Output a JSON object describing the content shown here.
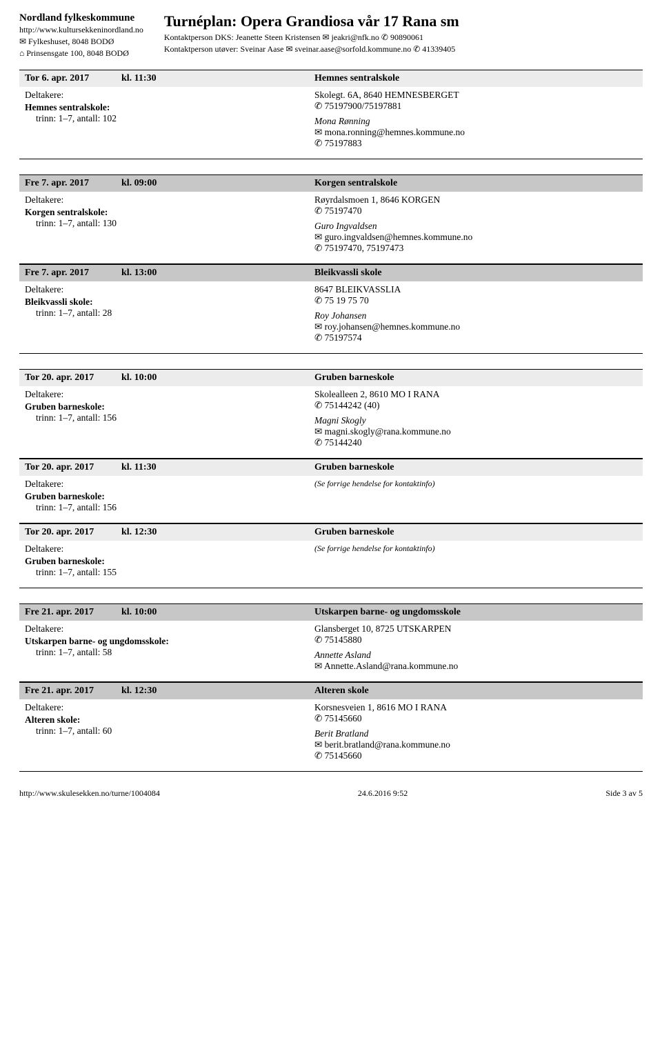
{
  "header": {
    "org_name": "Nordland fylkeskommune",
    "org_url": "http://www.kultursekkeninordland.no",
    "org_postal": "✉ Fylkeshuset, 8048 BODØ",
    "org_street": "⌂ Prinsensgate 100, 8048 BODØ",
    "tour_title": "Turnéplan: Opera Grandiosa vår 17 Rana sm",
    "contact_dks": "Kontaktperson DKS: Jeanette Steen Kristensen ✉ jeakri@nfk.no ✆ 90890061",
    "contact_performer": "Kontaktperson utøver: Sveinar Aase ✉ sveinar.aase@sorfold.kommune.no ✆ 41339405"
  },
  "groups": [
    {
      "events": [
        {
          "shade": "grey-light",
          "date": "Tor 6. apr. 2017",
          "time": "kl. 11:30",
          "venue": "Hemnes sentralskole",
          "deltakere_label": "Deltakere:",
          "school": "Hemnes sentralskole:",
          "trinn": "trinn: 1–7, antall: 102",
          "address": "Skolegt. 6A, 8640 HEMNESBERGET",
          "phone": "✆ 75197900/75197881",
          "person": "Mona Rønning",
          "email": "✉ mona.ronning@hemnes.kommune.no",
          "phone2": "✆ 75197883"
        }
      ]
    },
    {
      "events": [
        {
          "shade": "grey-dark",
          "date": "Fre 7. apr. 2017",
          "time": "kl. 09:00",
          "venue": "Korgen sentralskole",
          "deltakere_label": "Deltakere:",
          "school": "Korgen sentralskole:",
          "trinn": "trinn: 1–7, antall: 130",
          "address": "Røyrdalsmoen 1, 8646 KORGEN",
          "phone": "✆ 75197470",
          "person": "Guro Ingvaldsen",
          "email": "✉ guro.ingvaldsen@hemnes.kommune.no",
          "phone2": "✆ 75197470, 75197473"
        },
        {
          "shade": "grey-dark",
          "date": "Fre 7. apr. 2017",
          "time": "kl. 13:00",
          "venue": "Bleikvassli skole",
          "deltakere_label": "Deltakere:",
          "school": "Bleikvassli skole:",
          "trinn": "trinn: 1–7, antall: 28",
          "address": "8647 BLEIKVASSLIA",
          "phone": "✆ 75 19 75 70",
          "person": "Roy Johansen",
          "email": "✉ roy.johansen@hemnes.kommune.no",
          "phone2": "✆ 75197574"
        }
      ]
    },
    {
      "events": [
        {
          "shade": "grey-light",
          "date": "Tor 20. apr. 2017",
          "time": "kl. 10:00",
          "venue": "Gruben barneskole",
          "deltakere_label": "Deltakere:",
          "school": "Gruben barneskole:",
          "trinn": "trinn: 1–7, antall: 156",
          "address": "Skolealleen 2, 8610 MO I RANA",
          "phone": "✆ 75144242 (40)",
          "person": "Magni Skogly",
          "email": "✉ magni.skogly@rana.kommune.no",
          "phone2": "✆ 75144240"
        },
        {
          "shade": "grey-light",
          "date": "Tor 20. apr. 2017",
          "time": "kl. 11:30",
          "venue": "Gruben barneskole",
          "deltakere_label": "Deltakere:",
          "school": "Gruben barneskole:",
          "trinn": "trinn: 1–7, antall: 156",
          "ref_text": "(Se forrige hendelse for kontaktinfo)"
        },
        {
          "shade": "grey-light",
          "date": "Tor 20. apr. 2017",
          "time": "kl. 12:30",
          "venue": "Gruben barneskole",
          "deltakere_label": "Deltakere:",
          "school": "Gruben barneskole:",
          "trinn": "trinn: 1–7, antall: 155",
          "ref_text": "(Se forrige hendelse for kontaktinfo)"
        }
      ]
    },
    {
      "events": [
        {
          "shade": "grey-dark",
          "date": "Fre 21. apr. 2017",
          "time": "kl. 10:00",
          "venue": "Utskarpen barne- og ungdomsskole",
          "deltakere_label": "Deltakere:",
          "school": "Utskarpen barne- og ungdomsskole:",
          "trinn": "trinn: 1–7, antall: 58",
          "address": "Glansberget 10, 8725 UTSKARPEN",
          "phone": "✆ 75145880",
          "person": "Annette Asland",
          "email": "✉ Annette.Asland@rana.kommune.no"
        },
        {
          "shade": "grey-dark",
          "date": "Fre 21. apr. 2017",
          "time": "kl. 12:30",
          "venue": "Alteren skole",
          "deltakere_label": "Deltakere:",
          "school": "Alteren skole:",
          "trinn": "trinn: 1–7, antall: 60",
          "address": "Korsnesveien 1, 8616 MO I RANA",
          "phone": "✆ 75145660",
          "person": "Berit Bratland",
          "email": "✉ berit.bratland@rana.kommune.no",
          "phone2": "✆ 75145660"
        }
      ]
    }
  ],
  "footer": {
    "url": "http://www.skulesekken.no/turne/1004084",
    "date": "24.6.2016 9:52",
    "page": "Side 3 av 5"
  }
}
